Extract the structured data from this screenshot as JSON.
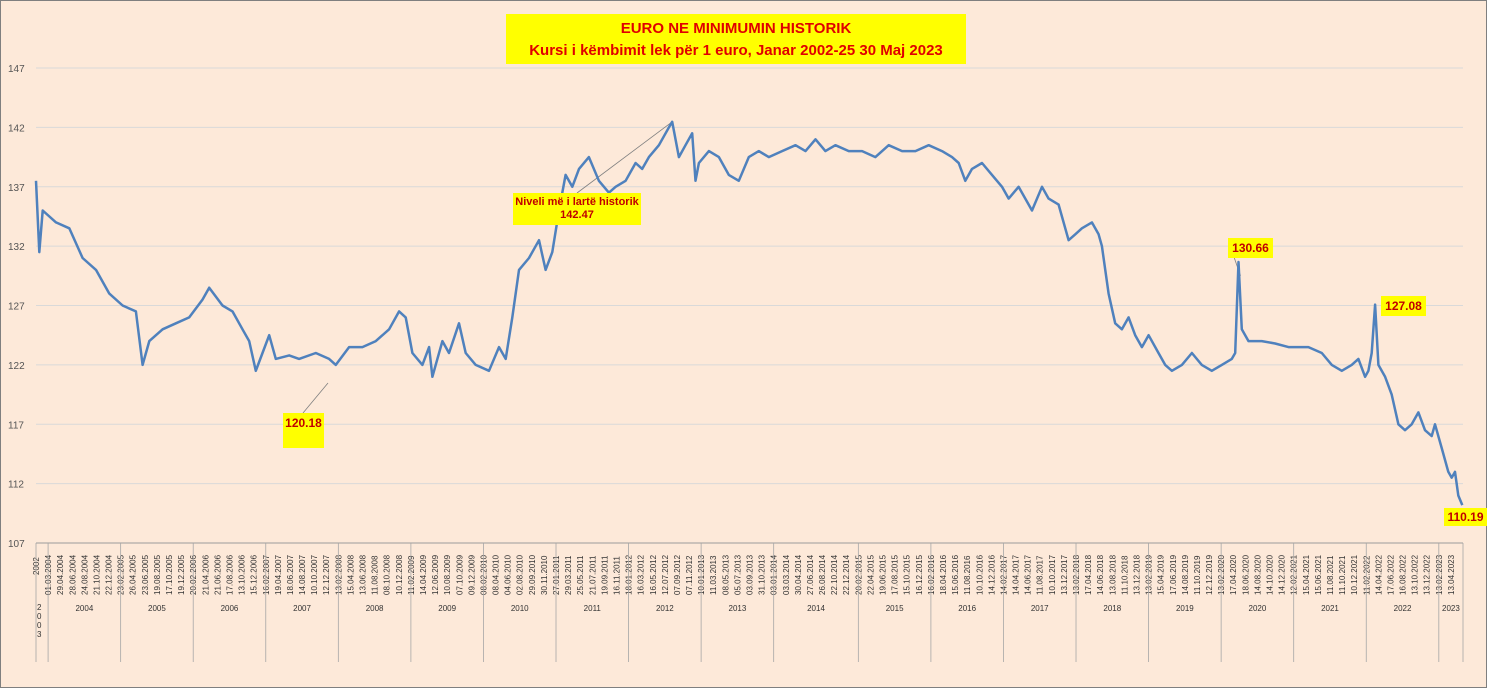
{
  "chart_data": {
    "type": "line",
    "title": "EURO NE MINIMUMIN HISTORIK",
    "subtitle": "Kursi i këmbimit lek për 1 euro, Janar 2002-25 30 Maj 2023",
    "xlabel": "",
    "ylabel": "",
    "ylim": [
      107,
      147
    ],
    "yticks": [
      107,
      112,
      117,
      122,
      127,
      132,
      137,
      142,
      147
    ],
    "grid": true,
    "legend": "none",
    "line_color": "#4f81bd",
    "first_tick_label": "2002",
    "date_ticks": [
      "01.03.2004",
      "29.04.2004",
      "28.06.2004",
      "24.08.2004",
      "21.10.2004",
      "22.12.2004",
      "23.02.2005",
      "26.04.2005",
      "23.06.2005",
      "19.08.2005",
      "17.10.2005",
      "19.12.2005",
      "20.02.2006",
      "21.04.2006",
      "21.06.2006",
      "17.08.2006",
      "13.10.2006",
      "15.12.2006",
      "16.02.2007",
      "19.04.2007",
      "18.06.2007",
      "14.08.2007",
      "10.10.2007",
      "12.12.2007",
      "13.02.2008",
      "15.04.2008",
      "13.06.2008",
      "11.08.2008",
      "08.10.2008",
      "10.12.2008",
      "11.02.2009",
      "14.04.2009",
      "12.06.2009",
      "10.08.2009",
      "07.10.2009",
      "09.12.2009",
      "08.02.2010",
      "08.04.2010",
      "04.06.2010",
      "02.08.2010",
      "29.09.2010",
      "30.11.2010",
      "27.01.2011",
      "29.03.2011",
      "25.05.2011",
      "21.07.2011",
      "19.09.2011",
      "16.11.2011",
      "18.01.2012",
      "16.03.2012",
      "16.05.2012",
      "12.07.2012",
      "07.09.2012",
      "07.11.2012",
      "10.01.2013",
      "11.03.2013",
      "08.05.2013",
      "05.07.2013",
      "03.09.2013",
      "31.10.2013",
      "03.01.2014",
      "03.03.2014",
      "30.04.2014",
      "27.06.2014",
      "26.08.2014",
      "22.10.2014",
      "22.12.2014",
      "20.02.2015",
      "22.04.2015",
      "19.06.2015",
      "17.08.2015",
      "15.10.2015",
      "16.12.2015",
      "16.02.2016",
      "18.04.2016",
      "15.06.2016",
      "11.08.2016",
      "10.10.2016",
      "14.12.2016",
      "14.02.2017",
      "14.04.2017",
      "14.06.2017",
      "11.08.2017",
      "10.10.2017",
      "13.12.2017",
      "13.02.2018",
      "17.04.2018",
      "14.06.2018",
      "13.08.2018",
      "11.10.2018",
      "13.12.2018",
      "13.02.2019",
      "15.04.2019",
      "17.06.2019",
      "14.08.2019",
      "11.10.2019",
      "12.12.2019",
      "13.02.2020",
      "17.04.2020",
      "18.06.2020",
      "14.08.2020",
      "14.10.2020",
      "14.12.2020",
      "12.02.2021",
      "15.04.2021",
      "15.06.2021",
      "11.08.2021",
      "11.10.2021",
      "10.12.2021",
      "11.02.2022",
      "14.04.2022",
      "17.06.2022",
      "16.08.2022",
      "13.10.2022",
      "13.12.2022",
      "13.02.2023",
      "13.04.2023"
    ],
    "year_groups": [
      {
        "label": "2\n0\n0\n3",
        "start": 0,
        "end": 1
      },
      {
        "label": "2004",
        "start": 1,
        "end": 7
      },
      {
        "label": "2005",
        "start": 7,
        "end": 13
      },
      {
        "label": "2006",
        "start": 13,
        "end": 19
      },
      {
        "label": "2007",
        "start": 19,
        "end": 25
      },
      {
        "label": "2008",
        "start": 25,
        "end": 31
      },
      {
        "label": "2009",
        "start": 31,
        "end": 37
      },
      {
        "label": "2010",
        "start": 37,
        "end": 43
      },
      {
        "label": "2011",
        "start": 43,
        "end": 49
      },
      {
        "label": "2012",
        "start": 49,
        "end": 55
      },
      {
        "label": "2013",
        "start": 55,
        "end": 61
      },
      {
        "label": "2014",
        "start": 61,
        "end": 68
      },
      {
        "label": "2015",
        "start": 68,
        "end": 74
      },
      {
        "label": "2016",
        "start": 74,
        "end": 80
      },
      {
        "label": "2017",
        "start": 80,
        "end": 86
      },
      {
        "label": "2018",
        "start": 86,
        "end": 92
      },
      {
        "label": "2019",
        "start": 92,
        "end": 98
      },
      {
        "label": "2020",
        "start": 98,
        "end": 104
      },
      {
        "label": "2021",
        "start": 104,
        "end": 110
      },
      {
        "label": "2022",
        "start": 110,
        "end": 116
      },
      {
        "label": "2023",
        "start": 116,
        "end": 118
      }
    ],
    "series": [
      {
        "values_by_year": [
          [
            2002.0,
            137.5
          ],
          [
            2002.05,
            131.5
          ],
          [
            2002.1,
            135.0
          ],
          [
            2002.3,
            134.0
          ],
          [
            2002.5,
            133.5
          ],
          [
            2002.7,
            131.0
          ],
          [
            2002.9,
            130.0
          ],
          [
            2003.1,
            128.0
          ],
          [
            2003.3,
            127.0
          ],
          [
            2003.5,
            126.5
          ],
          [
            2003.6,
            122.0
          ],
          [
            2003.7,
            124.0
          ],
          [
            2003.9,
            125.0
          ],
          [
            2004.1,
            125.5
          ],
          [
            2004.3,
            126.0
          ],
          [
            2004.5,
            127.5
          ],
          [
            2004.6,
            128.5
          ],
          [
            2004.8,
            127.0
          ],
          [
            2004.95,
            126.5
          ],
          [
            2005.1,
            125.0
          ],
          [
            2005.2,
            124.0
          ],
          [
            2005.3,
            121.5
          ],
          [
            2005.4,
            123.0
          ],
          [
            2005.5,
            124.5
          ],
          [
            2005.6,
            122.5
          ],
          [
            2005.8,
            122.8
          ],
          [
            2005.95,
            122.5
          ],
          [
            2006.2,
            123.0
          ],
          [
            2006.4,
            122.5
          ],
          [
            2006.5,
            122.0
          ],
          [
            2006.7,
            123.5
          ],
          [
            2006.9,
            123.5
          ],
          [
            2007.1,
            124.0
          ],
          [
            2007.3,
            125.0
          ],
          [
            2007.45,
            126.5
          ],
          [
            2007.55,
            126.0
          ],
          [
            2007.65,
            123.0
          ],
          [
            2007.8,
            122.0
          ],
          [
            2007.9,
            123.5
          ],
          [
            2007.95,
            121.0
          ],
          [
            2008.0,
            122.0
          ],
          [
            2008.1,
            124.0
          ],
          [
            2008.2,
            123.0
          ],
          [
            2008.35,
            125.5
          ],
          [
            2008.45,
            123.0
          ],
          [
            2008.6,
            122.0
          ],
          [
            2008.8,
            121.5
          ],
          [
            2008.95,
            123.5
          ],
          [
            2009.05,
            122.5
          ],
          [
            2009.15,
            126.0
          ],
          [
            2009.25,
            130.0
          ],
          [
            2009.4,
            131.0
          ],
          [
            2009.55,
            132.5
          ],
          [
            2009.65,
            130.0
          ],
          [
            2009.75,
            131.5
          ],
          [
            2009.85,
            135.0
          ],
          [
            2009.95,
            138.0
          ],
          [
            2010.05,
            137.0
          ],
          [
            2010.15,
            138.5
          ],
          [
            2010.3,
            139.5
          ],
          [
            2010.45,
            137.5
          ],
          [
            2010.6,
            136.5
          ],
          [
            2010.7,
            137.0
          ],
          [
            2010.85,
            137.5
          ],
          [
            2011.0,
            139.0
          ],
          [
            2011.1,
            138.5
          ],
          [
            2011.2,
            139.5
          ],
          [
            2011.35,
            140.5
          ],
          [
            2011.5,
            142.0
          ],
          [
            2011.55,
            142.47
          ],
          [
            2011.65,
            139.5
          ],
          [
            2011.75,
            140.5
          ],
          [
            2011.85,
            141.5
          ],
          [
            2011.9,
            137.5
          ],
          [
            2011.95,
            139.0
          ],
          [
            2012.1,
            140.0
          ],
          [
            2012.25,
            139.5
          ],
          [
            2012.4,
            138.0
          ],
          [
            2012.55,
            137.5
          ],
          [
            2012.7,
            139.5
          ],
          [
            2012.85,
            140.0
          ],
          [
            2013.0,
            139.5
          ],
          [
            2013.2,
            140.0
          ],
          [
            2013.4,
            140.5
          ],
          [
            2013.55,
            140.0
          ],
          [
            2013.7,
            141.0
          ],
          [
            2013.85,
            140.0
          ],
          [
            2014.0,
            140.5
          ],
          [
            2014.2,
            140.0
          ],
          [
            2014.4,
            140.0
          ],
          [
            2014.6,
            139.5
          ],
          [
            2014.8,
            140.5
          ],
          [
            2015.0,
            140.0
          ],
          [
            2015.2,
            140.0
          ],
          [
            2015.4,
            140.5
          ],
          [
            2015.6,
            140.0
          ],
          [
            2015.75,
            139.5
          ],
          [
            2015.85,
            139.0
          ],
          [
            2015.95,
            137.5
          ],
          [
            2016.05,
            138.5
          ],
          [
            2016.2,
            139.0
          ],
          [
            2016.35,
            138.0
          ],
          [
            2016.5,
            137.0
          ],
          [
            2016.6,
            136.0
          ],
          [
            2016.75,
            137.0
          ],
          [
            2016.85,
            136.0
          ],
          [
            2016.95,
            135.0
          ],
          [
            2017.1,
            137.0
          ],
          [
            2017.2,
            136.0
          ],
          [
            2017.35,
            135.5
          ],
          [
            2017.5,
            132.5
          ],
          [
            2017.6,
            133.0
          ],
          [
            2017.7,
            133.5
          ],
          [
            2017.85,
            134.0
          ],
          [
            2017.95,
            133.0
          ],
          [
            2018.0,
            132.0
          ],
          [
            2018.1,
            128.0
          ],
          [
            2018.2,
            125.5
          ],
          [
            2018.3,
            125.0
          ],
          [
            2018.4,
            126.0
          ],
          [
            2018.5,
            124.5
          ],
          [
            2018.6,
            123.5
          ],
          [
            2018.7,
            124.5
          ],
          [
            2018.85,
            123.0
          ],
          [
            2018.95,
            122.0
          ],
          [
            2019.05,
            121.5
          ],
          [
            2019.2,
            122.0
          ],
          [
            2019.35,
            123.0
          ],
          [
            2019.5,
            122.0
          ],
          [
            2019.65,
            121.5
          ],
          [
            2019.8,
            122.0
          ],
          [
            2019.95,
            122.5
          ],
          [
            2020.0,
            123.0
          ],
          [
            2020.05,
            130.66
          ],
          [
            2020.1,
            125.0
          ],
          [
            2020.2,
            124.0
          ],
          [
            2020.4,
            124.0
          ],
          [
            2020.6,
            123.8
          ],
          [
            2020.8,
            123.5
          ],
          [
            2020.95,
            123.5
          ],
          [
            2021.1,
            123.5
          ],
          [
            2021.3,
            123.0
          ],
          [
            2021.45,
            122.0
          ],
          [
            2021.6,
            121.5
          ],
          [
            2021.75,
            122.0
          ],
          [
            2021.85,
            122.5
          ],
          [
            2021.95,
            121.0
          ],
          [
            2022.0,
            121.5
          ],
          [
            2022.05,
            123.0
          ],
          [
            2022.1,
            127.08
          ],
          [
            2022.15,
            122.0
          ],
          [
            2022.25,
            121.0
          ],
          [
            2022.35,
            119.5
          ],
          [
            2022.45,
            117.0
          ],
          [
            2022.55,
            116.5
          ],
          [
            2022.65,
            117.0
          ],
          [
            2022.75,
            118.0
          ],
          [
            2022.85,
            116.5
          ],
          [
            2022.95,
            116.0
          ],
          [
            2023.0,
            117.0
          ],
          [
            2023.1,
            115.0
          ],
          [
            2023.2,
            113.0
          ],
          [
            2023.25,
            112.5
          ],
          [
            2023.3,
            113.0
          ],
          [
            2023.35,
            111.0
          ],
          [
            2023.41,
            110.19
          ]
        ]
      }
    ],
    "annotations": [
      {
        "label": "Niveli më i lartë historik",
        "value": "142.47"
      },
      {
        "label": "120.18"
      },
      {
        "label": "130.66"
      },
      {
        "label": "127.08"
      },
      {
        "label": "110.19"
      }
    ]
  }
}
